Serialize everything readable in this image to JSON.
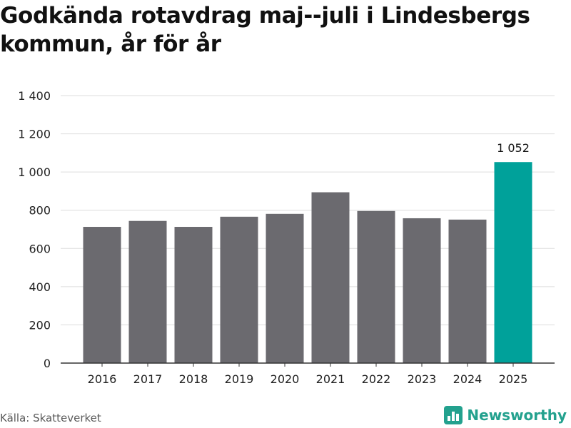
{
  "title": "Godkända rotavdrag maj--juli i Lindesbergs kommun, år för år",
  "source": "Källa: Skatteverket",
  "brand": {
    "name": "Newsworthy",
    "icon": "newsworthy-logo-icon",
    "color": "#23a18e"
  },
  "colors": {
    "bar": "#6b6a6f",
    "highlight": "#00a19a",
    "grid": "#dddddd",
    "axis": "#333333"
  },
  "chart_data": {
    "type": "bar",
    "title": "Godkända rotavdrag maj--juli i Lindesbergs kommun, år för år",
    "xlabel": "",
    "ylabel": "",
    "categories": [
      "2016",
      "2017",
      "2018",
      "2019",
      "2020",
      "2021",
      "2022",
      "2023",
      "2024",
      "2025"
    ],
    "values": [
      713,
      744,
      713,
      766,
      781,
      894,
      796,
      758,
      751,
      1052
    ],
    "highlight_index": 9,
    "data_labels": [
      {
        "index": 9,
        "text": "1 052"
      }
    ],
    "ylim": [
      0,
      1400
    ],
    "yticks": [
      0,
      200,
      400,
      600,
      800,
      1000,
      1200,
      1400
    ],
    "ytick_labels": [
      "0",
      "200",
      "400",
      "600",
      "800",
      "1 000",
      "1 200",
      "1 400"
    ],
    "grid": true,
    "legend": "none"
  }
}
